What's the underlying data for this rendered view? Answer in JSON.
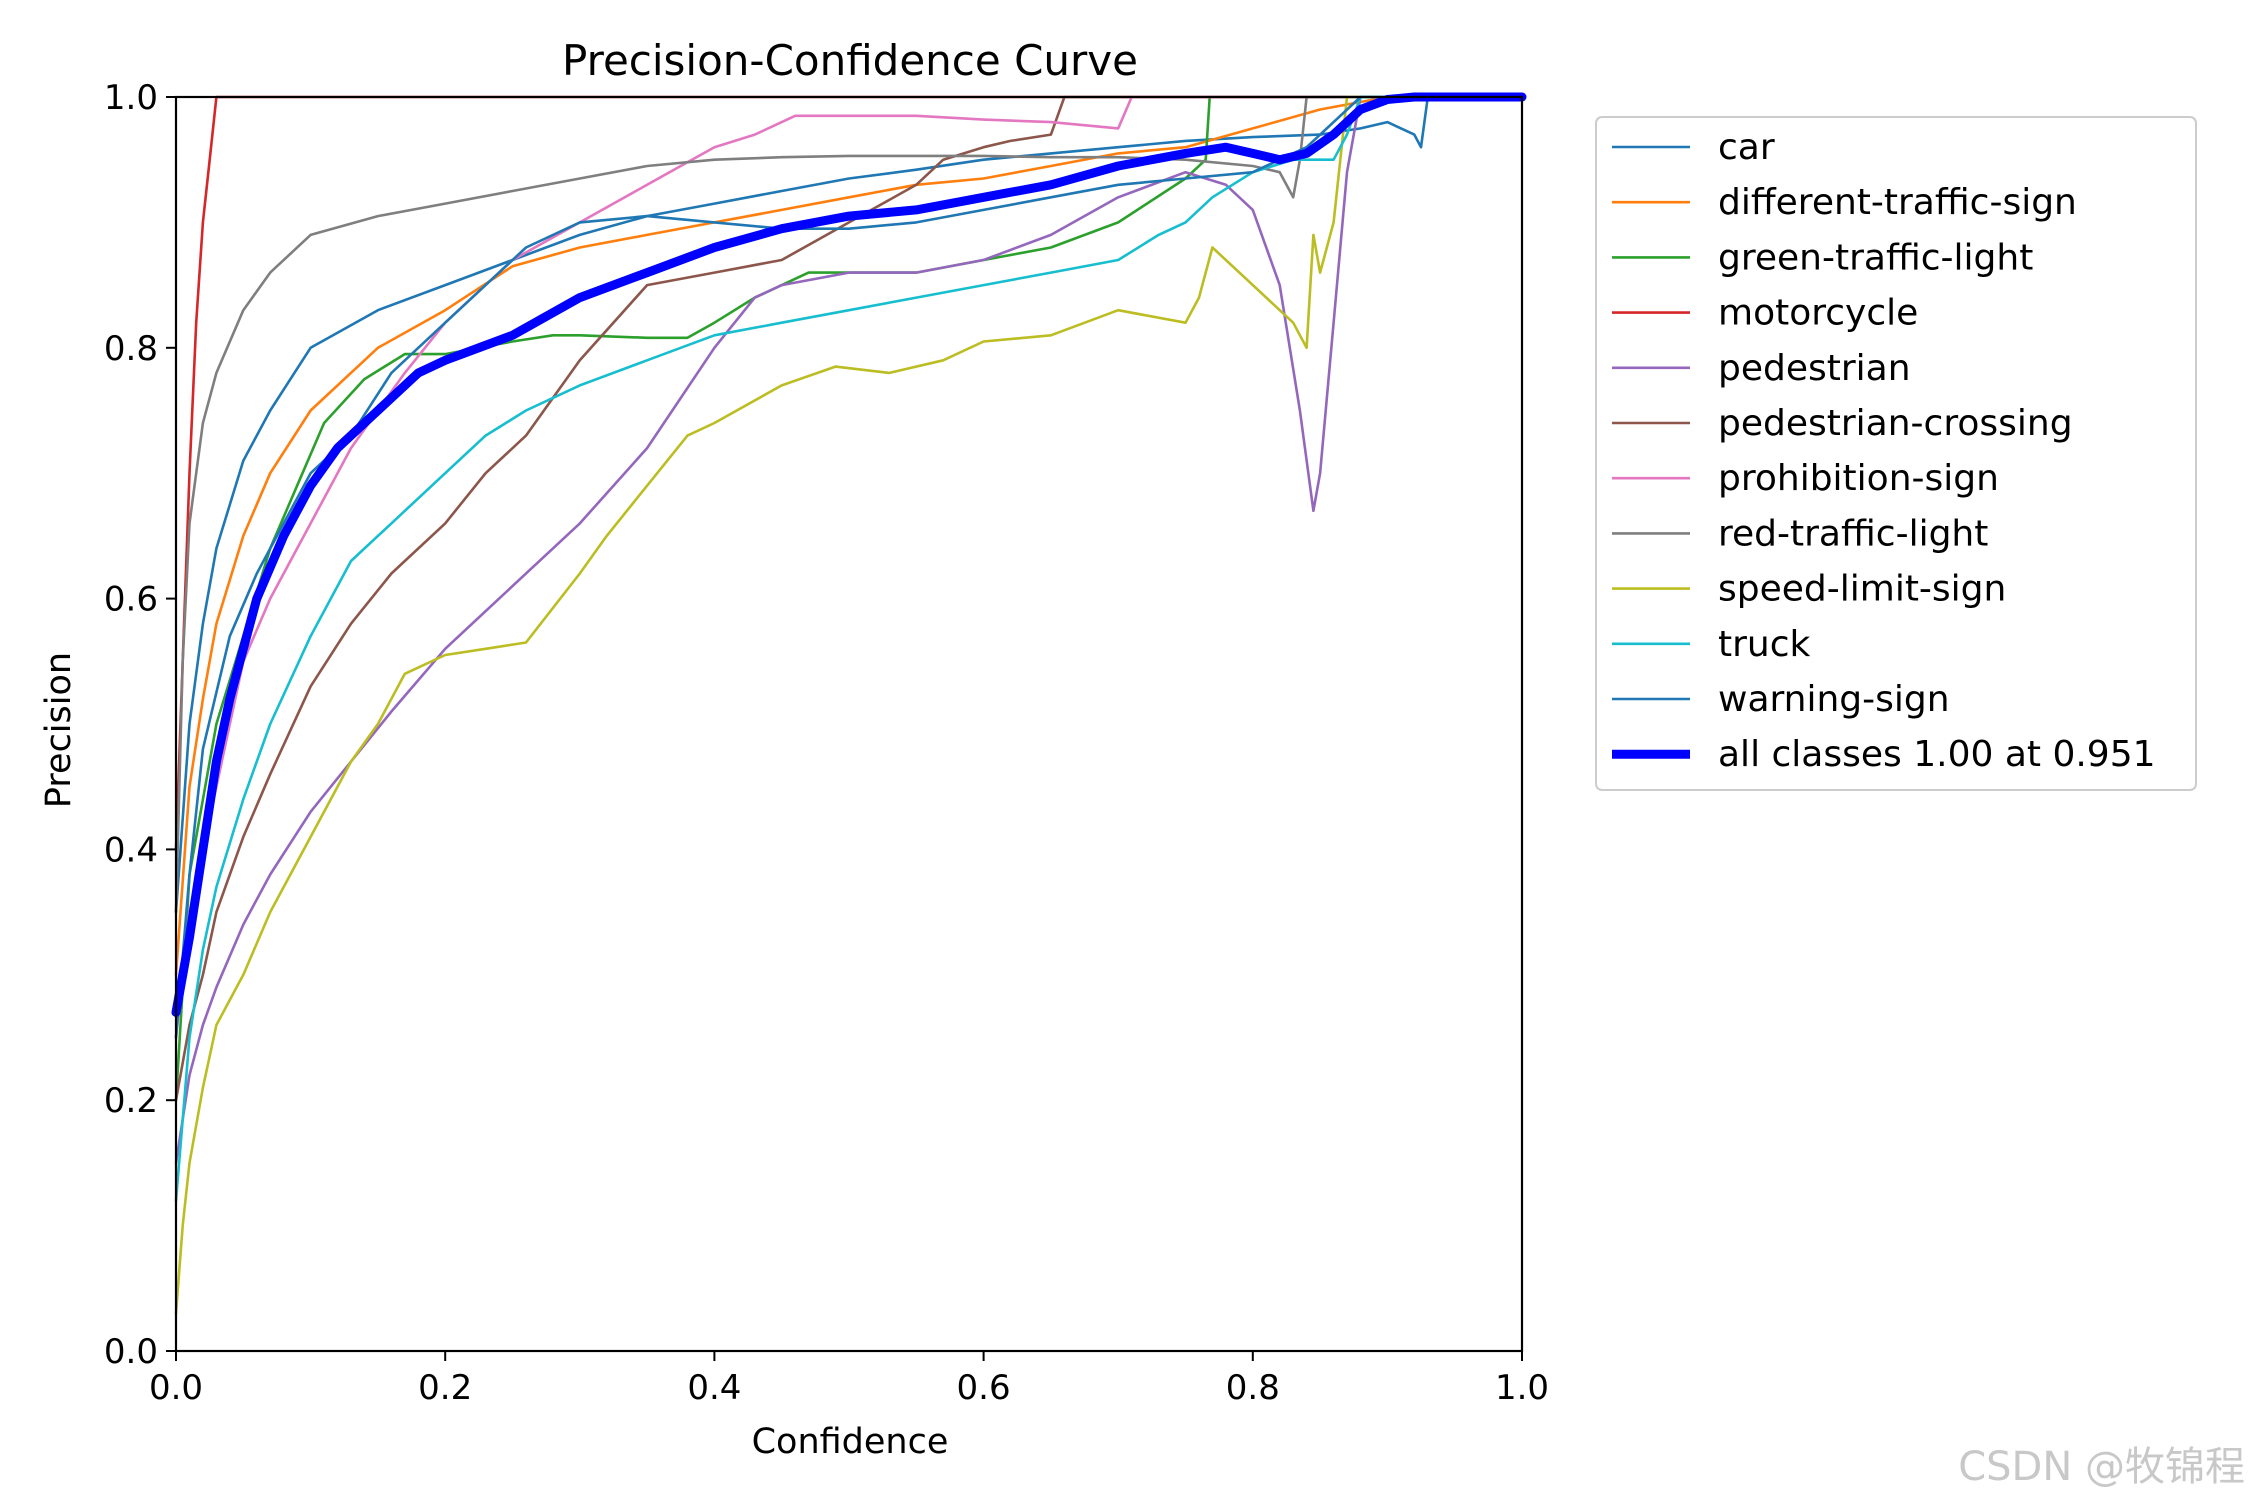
{
  "chart_data": {
    "type": "line",
    "title": "Precision-Confidence Curve",
    "xlabel": "Confidence",
    "ylabel": "Precision",
    "xlim": [
      0,
      1
    ],
    "ylim": [
      0,
      1
    ],
    "xticks": [
      "0.0",
      "0.2",
      "0.4",
      "0.6",
      "0.8",
      "1.0"
    ],
    "yticks": [
      "0.0",
      "0.2",
      "0.4",
      "0.6",
      "0.8",
      "1.0"
    ],
    "grid": false,
    "legend_position": "outside-right-top",
    "series": [
      {
        "name": "car",
        "color": "#1f77b4",
        "x": [
          0.0,
          0.01,
          0.02,
          0.03,
          0.05,
          0.07,
          0.1,
          0.15,
          0.2,
          0.25,
          0.3,
          0.35,
          0.4,
          0.45,
          0.5,
          0.55,
          0.6,
          0.65,
          0.7,
          0.75,
          0.8,
          0.85,
          0.88,
          0.9,
          0.92,
          0.925,
          0.93,
          1.0
        ],
        "y": [
          0.35,
          0.5,
          0.58,
          0.64,
          0.71,
          0.75,
          0.8,
          0.83,
          0.85,
          0.87,
          0.89,
          0.905,
          0.915,
          0.925,
          0.935,
          0.942,
          0.95,
          0.955,
          0.96,
          0.965,
          0.968,
          0.97,
          0.975,
          0.98,
          0.97,
          0.96,
          1.0,
          1.0
        ]
      },
      {
        "name": "different-traffic-sign",
        "color": "#ff7f0e",
        "x": [
          0.0,
          0.01,
          0.02,
          0.03,
          0.05,
          0.07,
          0.1,
          0.15,
          0.2,
          0.25,
          0.3,
          0.35,
          0.4,
          0.45,
          0.5,
          0.55,
          0.6,
          0.65,
          0.7,
          0.75,
          0.8,
          0.85,
          0.9,
          1.0
        ],
        "y": [
          0.3,
          0.45,
          0.52,
          0.58,
          0.65,
          0.7,
          0.75,
          0.8,
          0.83,
          0.865,
          0.88,
          0.89,
          0.9,
          0.91,
          0.92,
          0.93,
          0.935,
          0.945,
          0.955,
          0.96,
          0.975,
          0.99,
          1.0,
          1.0
        ]
      },
      {
        "name": "green-traffic-light",
        "color": "#2ca02c",
        "x": [
          0.0,
          0.01,
          0.03,
          0.05,
          0.07,
          0.09,
          0.11,
          0.14,
          0.17,
          0.2,
          0.25,
          0.28,
          0.3,
          0.35,
          0.38,
          0.4,
          0.43,
          0.47,
          0.5,
          0.55,
          0.6,
          0.65,
          0.7,
          0.75,
          0.765,
          0.768,
          0.77,
          1.0
        ],
        "y": [
          0.2,
          0.38,
          0.5,
          0.57,
          0.64,
          0.69,
          0.74,
          0.775,
          0.795,
          0.795,
          0.805,
          0.81,
          0.81,
          0.808,
          0.808,
          0.82,
          0.84,
          0.86,
          0.86,
          0.86,
          0.87,
          0.88,
          0.9,
          0.935,
          0.95,
          1.0,
          1.0,
          1.0
        ]
      },
      {
        "name": "motorcycle",
        "color": "#d62728",
        "x": [
          0.0,
          0.005,
          0.01,
          0.015,
          0.02,
          0.025,
          0.03,
          1.0
        ],
        "y": [
          0.4,
          0.55,
          0.7,
          0.82,
          0.9,
          0.95,
          1.0,
          1.0
        ]
      },
      {
        "name": "pedestrian",
        "color": "#9467bd",
        "x": [
          0.0,
          0.01,
          0.02,
          0.03,
          0.05,
          0.07,
          0.1,
          0.13,
          0.16,
          0.2,
          0.25,
          0.3,
          0.35,
          0.4,
          0.43,
          0.45,
          0.5,
          0.55,
          0.6,
          0.65,
          0.7,
          0.75,
          0.78,
          0.8,
          0.82,
          0.835,
          0.845,
          0.85,
          0.86,
          0.87,
          0.88,
          1.0
        ],
        "y": [
          0.15,
          0.22,
          0.26,
          0.29,
          0.34,
          0.38,
          0.43,
          0.47,
          0.51,
          0.56,
          0.61,
          0.66,
          0.72,
          0.8,
          0.84,
          0.85,
          0.86,
          0.86,
          0.87,
          0.89,
          0.92,
          0.94,
          0.93,
          0.91,
          0.85,
          0.75,
          0.67,
          0.7,
          0.82,
          0.94,
          1.0,
          1.0
        ]
      },
      {
        "name": "pedestrian-crossing",
        "color": "#8c564b",
        "x": [
          0.0,
          0.01,
          0.02,
          0.03,
          0.05,
          0.07,
          0.1,
          0.13,
          0.16,
          0.2,
          0.23,
          0.26,
          0.3,
          0.35,
          0.4,
          0.45,
          0.5,
          0.55,
          0.57,
          0.6,
          0.62,
          0.65,
          0.66,
          0.7,
          1.0
        ],
        "y": [
          0.2,
          0.26,
          0.3,
          0.35,
          0.41,
          0.46,
          0.53,
          0.58,
          0.62,
          0.66,
          0.7,
          0.73,
          0.79,
          0.85,
          0.86,
          0.87,
          0.9,
          0.93,
          0.95,
          0.96,
          0.965,
          0.97,
          1.0,
          1.0,
          1.0
        ]
      },
      {
        "name": "prohibition-sign",
        "color": "#e377c2",
        "x": [
          0.0,
          0.01,
          0.03,
          0.05,
          0.07,
          0.1,
          0.13,
          0.17,
          0.2,
          0.25,
          0.3,
          0.35,
          0.4,
          0.43,
          0.46,
          0.5,
          0.55,
          0.6,
          0.65,
          0.7,
          0.71,
          1.0
        ],
        "y": [
          0.25,
          0.35,
          0.45,
          0.55,
          0.6,
          0.66,
          0.72,
          0.78,
          0.82,
          0.87,
          0.9,
          0.93,
          0.96,
          0.97,
          0.985,
          0.985,
          0.985,
          0.982,
          0.98,
          0.975,
          1.0,
          1.0
        ]
      },
      {
        "name": "red-traffic-light",
        "color": "#7f7f7f",
        "x": [
          0.0,
          0.005,
          0.01,
          0.02,
          0.03,
          0.05,
          0.07,
          0.1,
          0.15,
          0.2,
          0.25,
          0.3,
          0.35,
          0.4,
          0.45,
          0.5,
          0.55,
          0.6,
          0.65,
          0.7,
          0.75,
          0.8,
          0.82,
          0.83,
          0.835,
          0.84,
          1.0
        ],
        "y": [
          0.35,
          0.55,
          0.66,
          0.74,
          0.78,
          0.83,
          0.86,
          0.89,
          0.905,
          0.915,
          0.925,
          0.935,
          0.945,
          0.95,
          0.952,
          0.953,
          0.953,
          0.953,
          0.952,
          0.952,
          0.95,
          0.945,
          0.94,
          0.92,
          0.95,
          1.0,
          1.0
        ]
      },
      {
        "name": "speed-limit-sign",
        "color": "#bcbd22",
        "x": [
          0.0,
          0.005,
          0.01,
          0.02,
          0.03,
          0.05,
          0.07,
          0.1,
          0.13,
          0.15,
          0.17,
          0.2,
          0.23,
          0.26,
          0.3,
          0.32,
          0.35,
          0.38,
          0.4,
          0.45,
          0.49,
          0.53,
          0.57,
          0.6,
          0.65,
          0.7,
          0.75,
          0.76,
          0.77,
          0.8,
          0.83,
          0.84,
          0.845,
          0.85,
          0.86,
          0.87,
          0.88,
          1.0
        ],
        "y": [
          0.03,
          0.1,
          0.15,
          0.21,
          0.26,
          0.3,
          0.35,
          0.41,
          0.47,
          0.5,
          0.54,
          0.555,
          0.56,
          0.565,
          0.62,
          0.65,
          0.69,
          0.73,
          0.74,
          0.77,
          0.785,
          0.78,
          0.79,
          0.805,
          0.81,
          0.83,
          0.82,
          0.84,
          0.88,
          0.85,
          0.82,
          0.8,
          0.89,
          0.86,
          0.9,
          1.0,
          1.0,
          1.0
        ]
      },
      {
        "name": "truck",
        "color": "#17becf",
        "x": [
          0.0,
          0.01,
          0.02,
          0.03,
          0.05,
          0.07,
          0.1,
          0.13,
          0.16,
          0.2,
          0.23,
          0.26,
          0.3,
          0.35,
          0.4,
          0.45,
          0.5,
          0.55,
          0.6,
          0.65,
          0.7,
          0.73,
          0.75,
          0.77,
          0.8,
          0.83,
          0.86,
          0.87,
          0.88,
          1.0
        ],
        "y": [
          0.12,
          0.25,
          0.32,
          0.37,
          0.44,
          0.5,
          0.57,
          0.63,
          0.66,
          0.7,
          0.73,
          0.75,
          0.77,
          0.79,
          0.81,
          0.82,
          0.83,
          0.84,
          0.85,
          0.86,
          0.87,
          0.89,
          0.9,
          0.92,
          0.94,
          0.95,
          0.95,
          0.97,
          1.0,
          1.0
        ]
      },
      {
        "name": "warning-sign",
        "color": "#1f77b4",
        "x": [
          0.0,
          0.01,
          0.02,
          0.04,
          0.06,
          0.08,
          0.1,
          0.13,
          0.16,
          0.2,
          0.23,
          0.26,
          0.3,
          0.35,
          0.4,
          0.45,
          0.5,
          0.55,
          0.6,
          0.65,
          0.7,
          0.75,
          0.8,
          0.82,
          0.84,
          0.86,
          0.88,
          1.0
        ],
        "y": [
          0.25,
          0.38,
          0.48,
          0.57,
          0.62,
          0.66,
          0.7,
          0.73,
          0.78,
          0.82,
          0.85,
          0.88,
          0.9,
          0.905,
          0.9,
          0.895,
          0.895,
          0.9,
          0.91,
          0.92,
          0.93,
          0.935,
          0.94,
          0.95,
          0.96,
          0.98,
          1.0,
          1.0
        ]
      },
      {
        "name": "all classes 1.00 at 0.951",
        "color": "#0000ff",
        "bold": true,
        "x": [
          0.0,
          0.01,
          0.02,
          0.03,
          0.04,
          0.05,
          0.06,
          0.08,
          0.1,
          0.12,
          0.15,
          0.18,
          0.2,
          0.25,
          0.3,
          0.35,
          0.4,
          0.45,
          0.5,
          0.55,
          0.6,
          0.65,
          0.7,
          0.75,
          0.78,
          0.8,
          0.82,
          0.84,
          0.86,
          0.88,
          0.9,
          0.92,
          0.951,
          1.0
        ],
        "y": [
          0.27,
          0.33,
          0.4,
          0.47,
          0.52,
          0.56,
          0.6,
          0.65,
          0.69,
          0.72,
          0.75,
          0.78,
          0.79,
          0.81,
          0.84,
          0.86,
          0.88,
          0.895,
          0.905,
          0.91,
          0.92,
          0.93,
          0.945,
          0.955,
          0.96,
          0.955,
          0.95,
          0.955,
          0.97,
          0.99,
          0.998,
          1.0,
          1.0,
          1.0
        ]
      }
    ]
  },
  "watermark": "CSDN @牧锦程"
}
